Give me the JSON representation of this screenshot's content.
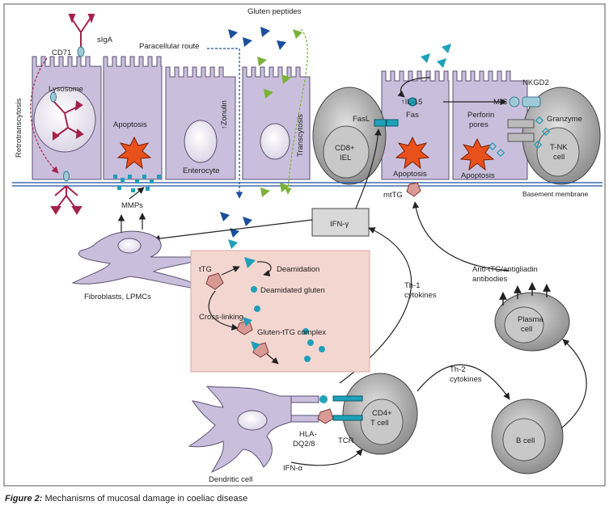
{
  "caption": {
    "number": "Figure 2:",
    "title": "Mechanisms of mucosal damage in coeliac disease"
  },
  "labels": {
    "siga": "sIgA",
    "cd71": "CD71",
    "retrotranscytosis": "Retrotranscytosis",
    "lysosome": "Lysosome",
    "apoptosis": "Apoptosis",
    "mmps": "MMPs",
    "gluten_peptides": "Gluten peptides",
    "paracellular_route": "Paracellular route",
    "zonulin": "↑Zonulin",
    "enterocyte": "Enterocyte",
    "transcytosis": "Transcytosis",
    "cd8_iel": [
      "CD8+",
      "IEL"
    ],
    "fasl": "FasL",
    "fas": "Fas",
    "il15": "↑IL-15",
    "mic": "MIC",
    "nkgd2": "NKGD2",
    "perforin_pores": [
      "Perforin",
      "pores"
    ],
    "granzyme": "Granzyme",
    "tnk_cell": [
      "T-NK",
      "cell"
    ],
    "basement_membrane": "Basement membrane",
    "mttg": "mtTG",
    "ifn_gamma": "IFN-γ",
    "fibroblasts": "Fibroblasts, LPMCs",
    "ttg": "tTG",
    "deamidation": "Deamidation",
    "deamidated_gluten": "Deamidated gluten",
    "cross_linking": "Cross-linking",
    "gluten_ttg_complex": "Gluten-tTG complex",
    "antibodies": [
      "Anti-tTG/antigliadin",
      "antibodies"
    ],
    "th1": [
      "Th-1",
      "cytokines"
    ],
    "th2": [
      "Th-2",
      "cytokines"
    ],
    "plasma_cell": [
      "Plasma",
      "cell"
    ],
    "b_cell": "B cell",
    "cd4_tcell": [
      "CD4+",
      "T cell"
    ],
    "hla": [
      "HLA-",
      "DQ2/8"
    ],
    "tcr": "TCR",
    "ifn_alpha": "IFN-α",
    "dendritic_cell": "Dendritic cell"
  },
  "colors": {
    "cell_fill": "#c9bfdc",
    "cell_stroke": "#5b5270",
    "nucleus_fill": "#ebe6f2",
    "grey_cell": "#9a9a9a",
    "grey_cell_light": "#c8c8c8",
    "panel_pink": "#f4d6d0",
    "gluten_blue": "#1a4f9c",
    "gluten_green": "#7bb23a",
    "teal": "#1fa0b8",
    "siga_red": "#a3234a",
    "burst": "#e8501c",
    "ttg_pink": "#d99a96"
  }
}
